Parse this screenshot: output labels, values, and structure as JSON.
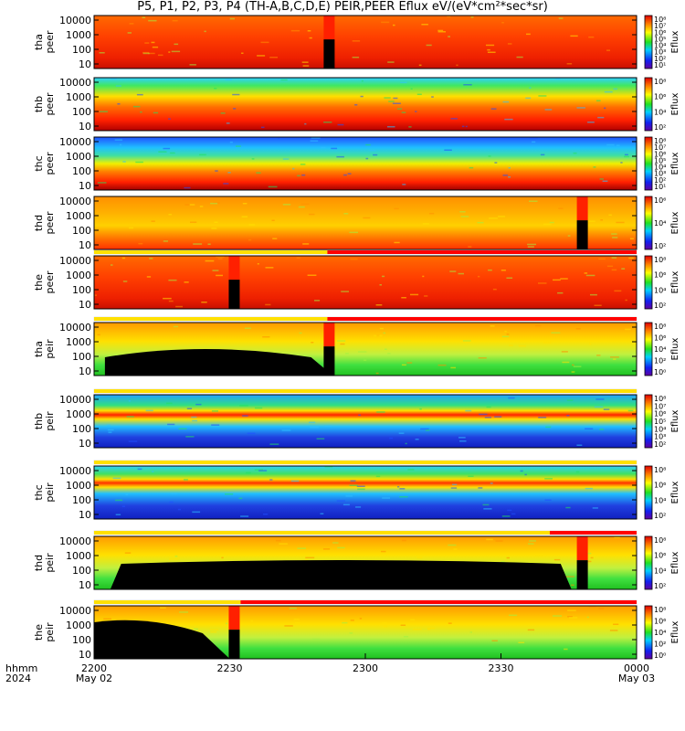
{
  "title": "P5, P1, P2, P3, P4 (TH-A,B,C,D,E) PEIR,PEER Eflux eV/(eV*cm²*sec*sr)",
  "colorbar_label": "Eflux",
  "time_axis": {
    "row_label_1": "hhmm",
    "row_label_2": "2024",
    "ticks": [
      {
        "time": "2200",
        "date": "May 02"
      },
      {
        "time": "2230",
        "date": ""
      },
      {
        "time": "2300",
        "date": ""
      },
      {
        "time": "2330",
        "date": ""
      },
      {
        "time": "0000",
        "date": "May 03"
      }
    ]
  },
  "chart_data": {
    "type": "heatmap",
    "x_range": [
      "2024-05-02 22:00",
      "2024-05-03 00:00"
    ],
    "y_scale": "log",
    "colorscale": "rainbow (blue-green-yellow-red)",
    "panels": [
      {
        "probe": "tha",
        "species": "peer",
        "y_ticks": [
          "10000",
          "1000",
          "100",
          "10"
        ],
        "cbar_ticks": [
          "10⁸",
          "10⁷",
          "10⁶",
          "10⁵",
          "10⁴",
          "10³",
          "10²",
          "10¹"
        ],
        "gap_marks": [
          "~22:52"
        ],
        "mode_bar": false
      },
      {
        "probe": "thb",
        "species": "peer",
        "y_ticks": [
          "10000",
          "1000",
          "100",
          "10"
        ],
        "cbar_ticks": [
          "10⁸",
          "10⁶",
          "10⁴",
          "10²"
        ],
        "gap_marks": [],
        "mode_bar": false
      },
      {
        "probe": "thc",
        "species": "peer",
        "y_ticks": [
          "10000",
          "1000",
          "100",
          "10"
        ],
        "cbar_ticks": [
          "10⁸",
          "10⁷",
          "10⁶",
          "10⁵",
          "10⁴",
          "10³",
          "10²",
          "10¹"
        ],
        "gap_marks": [],
        "mode_bar": false
      },
      {
        "probe": "thd",
        "species": "peer",
        "y_ticks": [
          "10000",
          "1000",
          "100",
          "10"
        ],
        "cbar_ticks": [
          "10⁶",
          "10⁴",
          "10²"
        ],
        "gap_marks": [
          "~23:48"
        ],
        "mode_bar": false
      },
      {
        "probe": "the",
        "species": "peer",
        "y_ticks": [
          "10000",
          "1000",
          "100",
          "10"
        ],
        "cbar_ticks": [
          "10⁸",
          "10⁶",
          "10⁴",
          "10²"
        ],
        "gap_marks": [
          "~22:31"
        ],
        "mode_bar": true
      },
      {
        "probe": "tha",
        "species": "peir",
        "y_ticks": [
          "10000",
          "1000",
          "100",
          "10"
        ],
        "cbar_ticks": [
          "10⁸",
          "10⁶",
          "10⁴",
          "10²",
          "10⁰"
        ],
        "gap_marks": [
          "~22:52"
        ],
        "mode_bar": true
      },
      {
        "probe": "thb",
        "species": "peir",
        "y_ticks": [
          "10000",
          "1000",
          "100",
          "10"
        ],
        "cbar_ticks": [
          "10⁸",
          "10⁷",
          "10⁶",
          "10⁵",
          "10⁴",
          "10³",
          "10²"
        ],
        "gap_marks": [],
        "mode_bar": true
      },
      {
        "probe": "thc",
        "species": "peir",
        "y_ticks": [
          "10000",
          "1000",
          "100",
          "10"
        ],
        "cbar_ticks": [
          "10⁸",
          "10⁶",
          "10⁴",
          "10²"
        ],
        "gap_marks": [],
        "mode_bar": true
      },
      {
        "probe": "thd",
        "species": "peir",
        "y_ticks": [
          "10000",
          "1000",
          "100",
          "10"
        ],
        "cbar_ticks": [
          "10⁸",
          "10⁶",
          "10⁴",
          "10²"
        ],
        "gap_marks": [
          "~23:48"
        ],
        "mode_bar": true
      },
      {
        "probe": "the",
        "species": "peir",
        "y_ticks": [
          "10000",
          "1000",
          "100",
          "10"
        ],
        "cbar_ticks": [
          "10⁸",
          "10⁶",
          "10⁴",
          "10²",
          "10⁰"
        ],
        "gap_marks": [
          "~22:31"
        ],
        "mode_bar": true
      }
    ]
  },
  "colors": {
    "low": "#1020d0",
    "mid": "#20e020",
    "high": "#ffff00",
    "max": "#e01010",
    "fill": "#000000",
    "mode_yellow": "#ffe000",
    "mode_red": "#ff0000"
  }
}
